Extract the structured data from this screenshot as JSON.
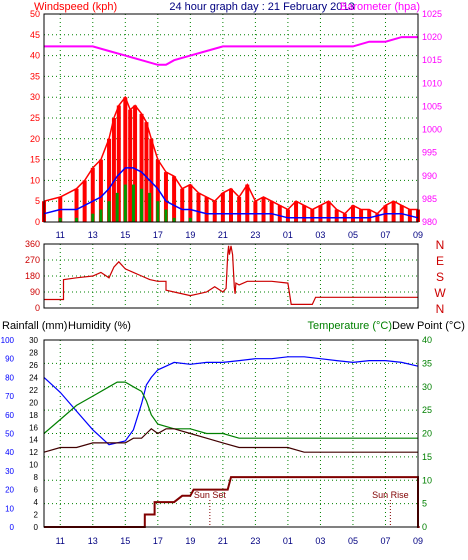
{
  "header": {
    "left": "Windspeed (kph)",
    "title": "24 hour graph day : 21 February 2013",
    "right": "Barometer (hpa)"
  },
  "colors": {
    "gust": "#ff0000",
    "speed": "#0000ff",
    "avg": "#009900",
    "baro": "#ff00ff",
    "direction": "#cc0000",
    "rain": "#800000",
    "humidity": "#0000ff",
    "temperature": "#008000",
    "dewpoint": "#400000",
    "frame": "#000000",
    "grid": "#008000",
    "title": "#000080"
  },
  "time_axis": {
    "labels": [
      "11",
      "13",
      "15",
      "17",
      "19",
      "21",
      "23",
      "01",
      "03",
      "05",
      "07",
      "09"
    ],
    "bottom_labels": [
      "11",
      "13",
      "15",
      "17",
      "19",
      "21",
      "23",
      "01",
      "03",
      "05",
      "07",
      "09"
    ]
  },
  "middle": {
    "compass": [
      "N",
      "W",
      "S",
      "E",
      "N"
    ]
  },
  "bottom_header": {
    "rain": "Rainfall (mm)",
    "humidity": "Humidity (%)",
    "temp": "Temperature (°C)",
    "dew": "Dew Point (°C)"
  },
  "annotations": {
    "sunset": "Sun Set",
    "sunrise": "Sun Rise"
  },
  "chart_data": [
    {
      "type": "line",
      "x_range": [
        10,
        33
      ],
      "y_left": {
        "ticks": [
          0,
          5,
          10,
          15,
          20,
          25,
          30,
          35,
          40,
          45,
          50
        ],
        "ylim": [
          0,
          50
        ]
      },
      "y_right": {
        "ticks": [
          980,
          985,
          990,
          995,
          1000,
          1005,
          1010,
          1015,
          1020,
          1025
        ],
        "ylim": [
          980,
          1025
        ]
      },
      "series": [
        {
          "name": "Windspeed (kph)",
          "role": "gust",
          "x": [
            10,
            11,
            12,
            12.5,
            13,
            13.5,
            14,
            14.3,
            14.6,
            15,
            15.3,
            15.6,
            16,
            16.3,
            16.6,
            17,
            17.5,
            18,
            18.5,
            19,
            19.5,
            20,
            20.5,
            21,
            21.5,
            22,
            22.5,
            23,
            23.5,
            24,
            24.5,
            25,
            25.5,
            26,
            26.5,
            27,
            27.5,
            28,
            28.5,
            29,
            29.5,
            30,
            30.5,
            31,
            31.5,
            32,
            32.5,
            33
          ],
          "y": [
            5,
            6,
            8,
            10,
            13,
            15,
            20,
            25,
            28,
            30,
            27,
            28,
            26,
            24,
            20,
            15,
            12,
            11,
            8,
            9,
            7,
            6,
            5,
            7,
            8,
            6,
            9,
            5,
            6,
            5,
            4,
            3,
            5,
            4,
            3,
            4,
            5,
            3,
            2,
            4,
            3,
            3,
            2,
            4,
            5,
            4,
            3,
            3
          ]
        },
        {
          "name": "",
          "role": "speed",
          "x": [
            10,
            11,
            12,
            13,
            13.5,
            14,
            14.5,
            15,
            15.5,
            16,
            16.5,
            17,
            17.5,
            18,
            18.5,
            19,
            20,
            21,
            22,
            23,
            24,
            25,
            26,
            27,
            28,
            29,
            30,
            31,
            32,
            33
          ],
          "y": [
            2,
            3,
            3,
            5,
            6,
            8,
            11,
            13,
            13,
            12,
            10,
            8,
            5,
            4,
            3,
            3,
            2,
            2,
            2,
            2,
            2,
            1,
            1,
            1,
            1,
            1,
            1,
            2,
            2,
            1
          ]
        },
        {
          "name": "",
          "role": "average",
          "x": [
            10,
            11,
            12,
            13,
            13.5,
            14,
            14.5,
            15,
            15.5,
            16,
            16.5,
            17,
            17.5,
            18,
            19,
            20,
            21,
            22,
            23,
            24,
            25,
            26,
            27,
            28,
            29,
            30,
            31,
            32,
            33
          ],
          "y": [
            0,
            1,
            1,
            2,
            3,
            5,
            7,
            9,
            9,
            8,
            7,
            5,
            3,
            1,
            1,
            0,
            0,
            0,
            0,
            0,
            0,
            0,
            0,
            0,
            0,
            0,
            0,
            0,
            0
          ]
        },
        {
          "name": "Barometer (hpa)",
          "role": "barometer",
          "axis": "right",
          "x": [
            10,
            11,
            12,
            13,
            14,
            15,
            16,
            17,
            17.5,
            18,
            19,
            20,
            21,
            22,
            23,
            24,
            25,
            26,
            27,
            28,
            29,
            30,
            31,
            32,
            33
          ],
          "y": [
            1018,
            1018,
            1018,
            1018,
            1017,
            1016,
            1015,
            1014,
            1014,
            1015,
            1016,
            1017,
            1018,
            1018,
            1018,
            1018,
            1018,
            1018,
            1018,
            1018,
            1018,
            1019,
            1019,
            1020,
            1020
          ]
        }
      ]
    },
    {
      "type": "line",
      "x_range": [
        10,
        33
      ],
      "y_left": {
        "ticks": [
          0,
          90,
          180,
          270,
          360
        ],
        "ylim": [
          0,
          360
        ]
      },
      "series": [
        {
          "name": "",
          "role": "direction",
          "x": [
            10,
            11.2,
            11.2,
            12,
            13,
            13.5,
            14,
            14.3,
            14.6,
            15,
            15.5,
            16,
            16.5,
            17,
            17.5,
            17.5,
            18,
            19,
            19.5,
            20,
            20.5,
            21,
            21.2,
            21.3,
            21.35,
            21.4,
            21.5,
            21.6,
            21.7,
            21.75,
            21.8,
            22,
            22.5,
            23,
            24,
            25,
            25.2,
            26,
            26.5,
            26.7,
            27,
            28,
            29,
            30,
            31,
            32,
            33
          ],
          "y": [
            48,
            48,
            160,
            170,
            180,
            200,
            170,
            230,
            260,
            220,
            200,
            180,
            160,
            150,
            150,
            100,
            90,
            70,
            80,
            90,
            120,
            90,
            110,
            300,
            350,
            300,
            350,
            300,
            120,
            80,
            140,
            130,
            150,
            150,
            150,
            140,
            20,
            20,
            20,
            60,
            60,
            60,
            60,
            60,
            60,
            60,
            60
          ]
        }
      ]
    },
    {
      "type": "line",
      "x_range": [
        10,
        33
      ],
      "y_left_outer": {
        "name": "Rainfall (mm)",
        "ticks": [
          0,
          10,
          20,
          30,
          40,
          50,
          60,
          70,
          80,
          90,
          100
        ],
        "ylim": [
          0,
          100
        ]
      },
      "y_left_inner": {
        "name": "Humidity (%)",
        "ticks": [
          0,
          2,
          4,
          6,
          8,
          10,
          12,
          14,
          16,
          18,
          20,
          22,
          24,
          26,
          28,
          30
        ],
        "ylim": [
          0,
          30
        ]
      },
      "y_right": {
        "name": "Temperature (°C)",
        "ticks": [
          0,
          5,
          10,
          15,
          20,
          25,
          30,
          35,
          40
        ],
        "ylim": [
          0,
          40
        ]
      },
      "series": [
        {
          "name": "Humidity (%)",
          "role": "humidity",
          "axis": "outer",
          "x": [
            10,
            11,
            12,
            13,
            14,
            15,
            15.5,
            16,
            16.3,
            16.6,
            17,
            17.5,
            18,
            19,
            20,
            21,
            22,
            23,
            24,
            25,
            26,
            27,
            28,
            29,
            30,
            31,
            32,
            33
          ],
          "y": [
            80,
            72,
            62,
            52,
            44,
            46,
            52,
            66,
            76,
            80,
            84,
            86,
            88,
            87,
            88,
            88,
            89,
            90,
            90,
            91,
            91,
            90,
            89,
            88,
            89,
            89,
            88,
            86
          ]
        },
        {
          "name": "Temperature (°C)",
          "role": "temperature",
          "axis": "right",
          "x": [
            10,
            11,
            12,
            13,
            14,
            14.5,
            15,
            15.5,
            16,
            16.3,
            16.6,
            17,
            18,
            19,
            20,
            21,
            22,
            23,
            24,
            25,
            26,
            27,
            28,
            29,
            30,
            31,
            32,
            33
          ],
          "y": [
            20,
            23,
            26,
            28,
            30,
            31,
            31,
            30,
            29,
            27,
            24,
            22,
            21,
            21,
            20,
            20,
            19,
            19,
            19,
            19,
            19,
            19,
            19,
            19,
            19,
            19,
            19,
            19
          ]
        },
        {
          "name": "Dew Point (°C)",
          "role": "dewpoint",
          "axis": "right",
          "x": [
            10,
            11,
            12,
            13,
            14,
            15,
            15.5,
            16,
            16.3,
            16.6,
            17,
            17.5,
            18,
            19,
            20,
            21,
            22,
            23,
            24,
            25,
            26,
            27,
            28,
            29,
            30,
            31,
            32,
            33
          ],
          "y": [
            16,
            17,
            17,
            18,
            18,
            18,
            19,
            19,
            20,
            21,
            20,
            21,
            21,
            20,
            19,
            18,
            17,
            17,
            17,
            17,
            16,
            16,
            16,
            16,
            16,
            16,
            16,
            16
          ]
        },
        {
          "name": "Rainfall (mm)",
          "role": "rain",
          "axis": "inner",
          "x": [
            10,
            16.2,
            16.2,
            16.8,
            16.8,
            17.2,
            17.5,
            18,
            18.5,
            19,
            19.2,
            20,
            20.8,
            21.3,
            21.5,
            22,
            23,
            24,
            25,
            26,
            27,
            28,
            29,
            30,
            31,
            32,
            33,
            33,
            33.1
          ],
          "y": [
            0,
            0,
            2,
            2,
            4,
            4,
            4,
            4,
            5,
            5,
            6,
            6,
            6,
            6,
            8,
            8,
            8,
            8,
            8,
            8,
            8,
            8,
            8,
            8,
            8,
            8,
            8,
            0,
            0
          ]
        }
      ]
    }
  ]
}
